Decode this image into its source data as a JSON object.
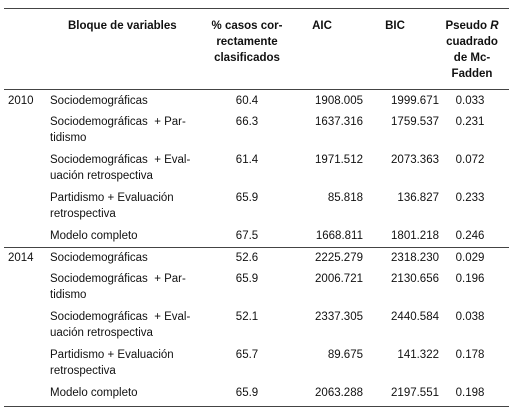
{
  "header": {
    "block": "Bloque de variables",
    "pct": [
      "% casos cor-",
      "rectamente",
      "clasificados"
    ],
    "aic": "AIC",
    "bic": "BIC",
    "r2": {
      "first": "Pseudo",
      "italic": "R",
      "rest": [
        "cuadrado",
        "de Mc-",
        "Fadden"
      ]
    }
  },
  "groups": [
    {
      "year": "2010",
      "rows": [
        {
          "block": [
            "Sociodemográficas"
          ],
          "pct": "60.4",
          "aic": "1908.005",
          "bic": "1999.671",
          "r2": "0.033"
        },
        {
          "block": [
            "Sociodemográficas  + Par-",
            "tidismo"
          ],
          "pct": "66.3",
          "aic": "1637.316",
          "bic": "1759.537",
          "r2": "0.231"
        },
        {
          "block": [
            "Sociodemográficas  + Eval-",
            "uación retrospectiva"
          ],
          "pct": "61.4",
          "aic": "1971.512",
          "bic": "2073.363",
          "r2": "0.072"
        },
        {
          "block": [
            "Partidismo + Evaluación",
            "retrospectiva"
          ],
          "pct": "65.9",
          "aic": "85.818",
          "bic": "136.827",
          "r2": "0.233"
        },
        {
          "block": [
            "Modelo completo"
          ],
          "pct": "67.5",
          "aic": "1668.811",
          "bic": "1801.218",
          "r2": "0.246"
        }
      ]
    },
    {
      "year": "2014",
      "rows": [
        {
          "block": [
            "Sociodemográficas"
          ],
          "pct": "52.6",
          "aic": "2225.279",
          "bic": "2318.230",
          "r2": "0.029"
        },
        {
          "block": [
            "Sociodemográficas  + Par-",
            "tidismo"
          ],
          "pct": "65.9",
          "aic": "2006.721",
          "bic": "2130.656",
          "r2": "0.196"
        },
        {
          "block": [
            "Sociodemográficas  + Eval-",
            "uación retrospectiva"
          ],
          "pct": "52.1",
          "aic": "2337.305",
          "bic": "2440.584",
          "r2": "0.038"
        },
        {
          "block": [
            "Partidismo + Evaluación",
            "retrospectiva"
          ],
          "pct": "65.7",
          "aic": "89.675",
          "bic": "141.322",
          "r2": "0.178"
        },
        {
          "block": [
            "Modelo completo"
          ],
          "pct": "65.9",
          "aic": "2063.288",
          "bic": "2197.551",
          "r2": "0.198"
        }
      ]
    }
  ]
}
